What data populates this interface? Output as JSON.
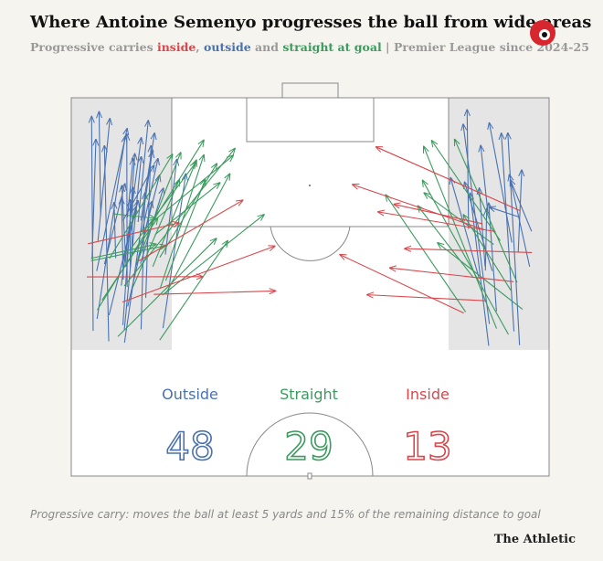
{
  "chart_data": {
    "type": "pitch-carries",
    "title": "Where Antoine Semenyo progresses the ball from wide areas",
    "subtitle": [
      "Progressive carries ",
      "inside",
      ", ",
      "outside",
      " and ",
      "straight at goal",
      " | Premier League since 2024-25"
    ],
    "categories": [
      "Outside",
      "Straight",
      "Inside"
    ],
    "values": [
      48,
      29,
      13
    ],
    "colors": [
      "#4a72b0",
      "#3b9a5e",
      "#d9464b"
    ],
    "note": "Progressive carry: moves the ball at least 5 yards and 15% of the remaining distance to goal",
    "source": "The Athletic"
  }
}
